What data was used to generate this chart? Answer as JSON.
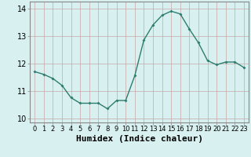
{
  "x": [
    0,
    1,
    2,
    3,
    4,
    5,
    6,
    7,
    8,
    9,
    10,
    11,
    12,
    13,
    14,
    15,
    16,
    17,
    18,
    19,
    20,
    21,
    22,
    23
  ],
  "y": [
    11.7,
    11.6,
    11.45,
    11.2,
    10.75,
    10.55,
    10.55,
    10.55,
    10.35,
    10.65,
    10.65,
    11.55,
    12.85,
    13.4,
    13.75,
    13.9,
    13.8,
    13.25,
    12.75,
    12.1,
    11.95,
    12.05,
    12.05,
    11.85
  ],
  "line_color": "#2e7d6e",
  "marker": "D",
  "marker_size": 2.0,
  "line_width": 1.0,
  "bg_color": "#d8f0f0",
  "grid_color": "#c8a8a8",
  "xlabel": "Humidex (Indice chaleur)",
  "xlabel_fontsize": 8,
  "xlim": [
    -0.5,
    23.5
  ],
  "ylim": [
    9.85,
    14.25
  ],
  "yticks": [
    10,
    11,
    12,
    13,
    14
  ],
  "ytick_fontsize": 7,
  "xtick_fontsize": 6,
  "spine_color": "#888888"
}
